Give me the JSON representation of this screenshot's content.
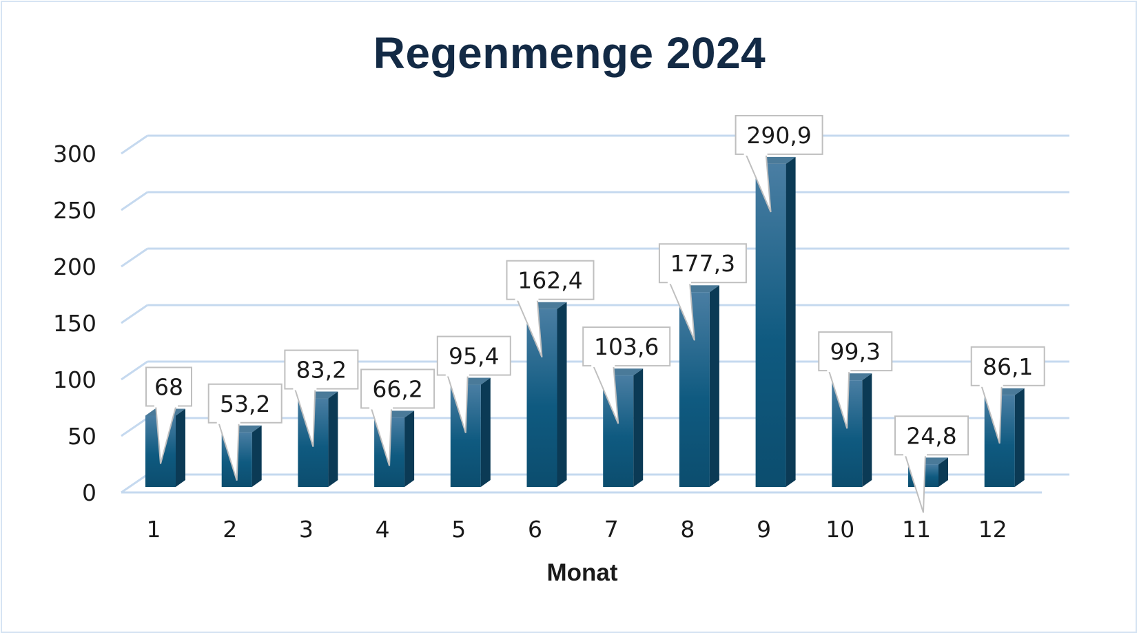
{
  "chart_data": {
    "type": "bar",
    "title": "Regenmenge 2024",
    "xlabel": "Monat",
    "ylabel": "",
    "categories": [
      "1",
      "2",
      "3",
      "4",
      "5",
      "6",
      "7",
      "8",
      "9",
      "10",
      "11",
      "12"
    ],
    "values": [
      68,
      53.2,
      83.2,
      66.2,
      95.4,
      162.4,
      103.6,
      177.3,
      290.9,
      99.3,
      24.8,
      86.1
    ],
    "data_labels": [
      "68",
      "53,2",
      "83,2",
      "66,2",
      "95,4",
      "162,4",
      "103,6",
      "177,3",
      "290,9",
      "99,3",
      "24,8",
      "86,1"
    ],
    "y_ticks": [
      "0",
      "50",
      "100",
      "150",
      "200",
      "250",
      "300"
    ],
    "ylim": [
      0,
      300
    ],
    "grid": true,
    "legend": "none",
    "style": "3d-column with callout data labels",
    "colors": {
      "bar_front": "#0f5a80",
      "bar_top": "#4a7a99",
      "bar_side": "#0b3a55",
      "grid": "#c5d9ef",
      "title": "#132a45"
    }
  }
}
